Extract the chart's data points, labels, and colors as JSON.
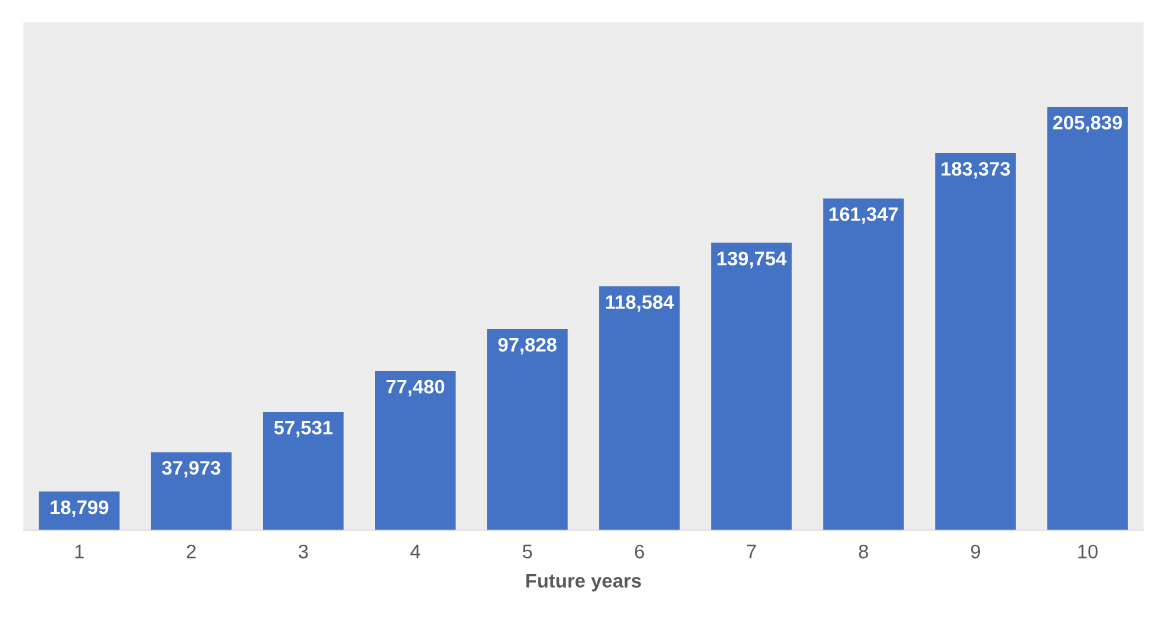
{
  "chart_data": {
    "type": "bar",
    "xlabel": "Future years",
    "categories": [
      "1",
      "2",
      "3",
      "4",
      "5",
      "6",
      "7",
      "8",
      "9",
      "10"
    ],
    "values": [
      18799,
      37973,
      57531,
      77480,
      97828,
      118584,
      139754,
      161347,
      183373,
      205839
    ],
    "value_labels": [
      "18,799",
      "37,973",
      "57,531",
      "77,480",
      "97,828",
      "118,584",
      "139,754",
      "161,347",
      "183,373",
      "205,839"
    ],
    "color": "#4472c4",
    "grid": false,
    "legend": false
  }
}
